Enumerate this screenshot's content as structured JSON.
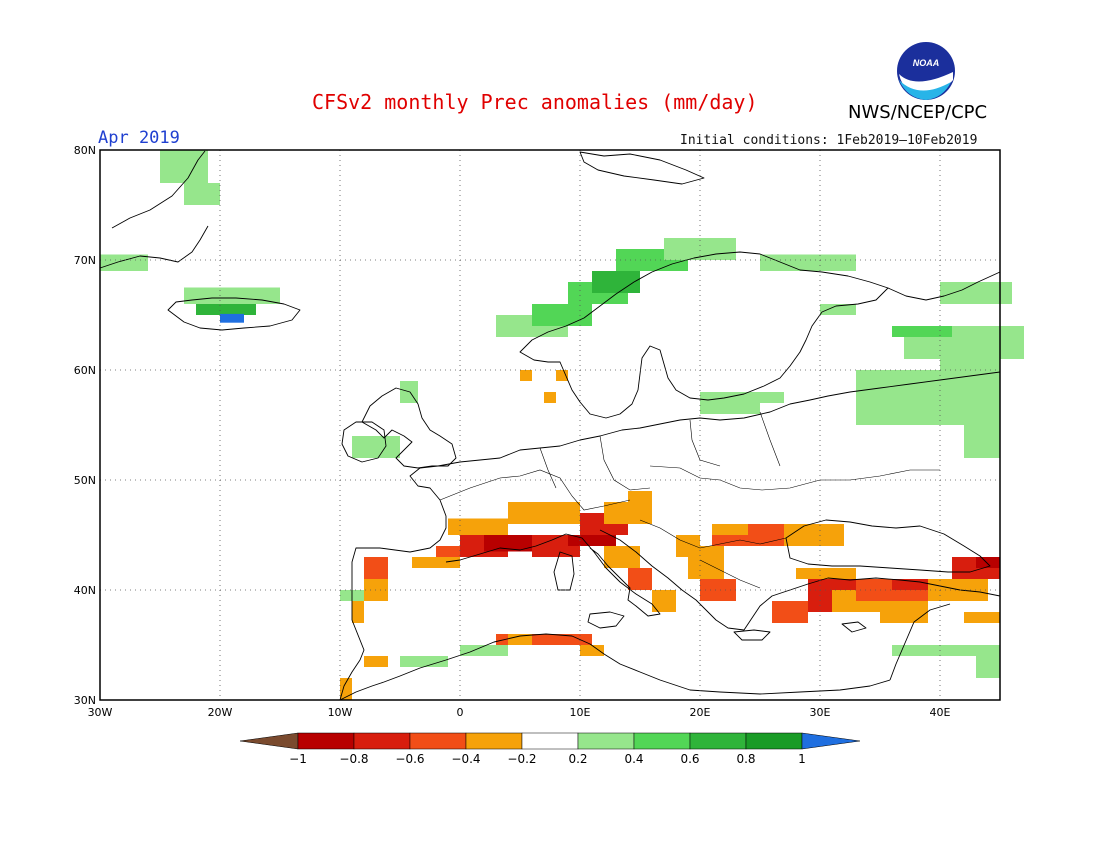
{
  "header": {
    "title": "CFSv2 monthly Prec anomalies (mm/day)",
    "agency": "NWS/NCEP/CPC",
    "month": "Apr 2019",
    "initial_conditions": "Initial conditions: 1Feb2019—10Feb2019",
    "logo_text": "NOAA"
  },
  "map": {
    "lat_ticks": [
      "80N",
      "70N",
      "60N",
      "50N",
      "40N",
      "30N"
    ],
    "lon_ticks": [
      "30W",
      "20W",
      "10W",
      "0",
      "10E",
      "20E",
      "30E",
      "40E"
    ],
    "lon_range": [
      -30,
      45
    ],
    "lat_range": [
      30,
      80
    ],
    "gridlines": "dotted"
  },
  "colorbar": {
    "labels": [
      "−1",
      "−0.8",
      "−0.6",
      "−0.4",
      "−0.2",
      "0.2",
      "0.4",
      "0.6",
      "0.8",
      "1"
    ],
    "colors": {
      "lt_-1": "#7a4a2e",
      "-1_-0.8": "#b80000",
      "-0.8_-0.6": "#d81e0e",
      "-0.6_-0.4": "#f24e17",
      "-0.4_-0.2": "#f6a20a",
      "-0.2_0.2": "#ffffff",
      "0.2_0.4": "#96e68c",
      "0.4_0.6": "#52d656",
      "0.6_0.8": "#2fb43a",
      "0.8_1": "#199b26",
      "gt_1": "#1f6fe0"
    }
  }
}
